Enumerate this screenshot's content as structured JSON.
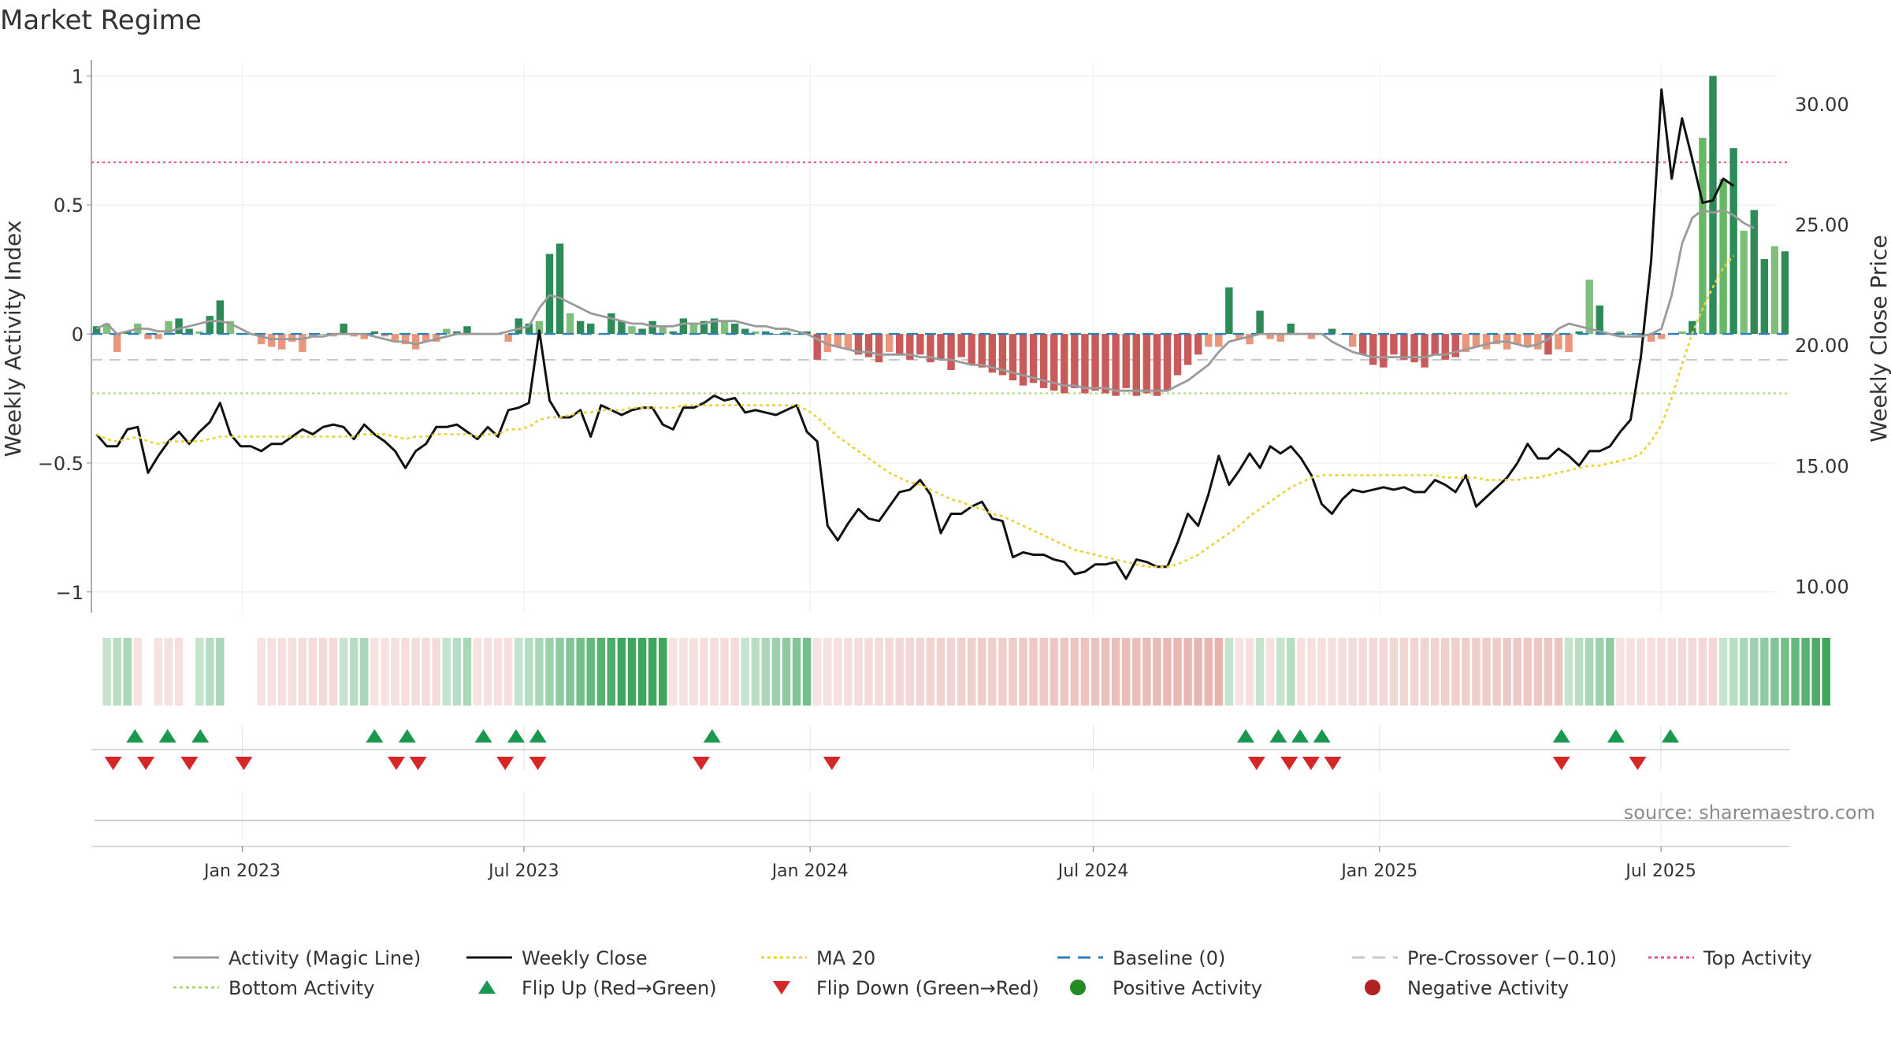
{
  "chart_data": {
    "type": "line",
    "title": "Market Regime",
    "source": "source: sharemaestro.com",
    "x_ticks": [
      "Jan 2023",
      "Jul 2023",
      "Jan 2024",
      "Jul 2024",
      "Jan 2025",
      "Jul 2025"
    ],
    "x_tick_dates": [
      "2023-01-01",
      "2023-07-01",
      "2024-01-01",
      "2024-07-01",
      "2025-01-01",
      "2025-07-01"
    ],
    "x_range": [
      "2022-09-26",
      "2025-09-22"
    ],
    "left_axis": {
      "label": "Weekly Activity Index",
      "ylim": [
        -1.08,
        1.05
      ],
      "ticks": [
        -1,
        -0.5,
        0,
        0.5,
        1
      ],
      "tick_labels": [
        "−1",
        "−0.5",
        "0",
        "0.5",
        "1"
      ]
    },
    "right_axis": {
      "label": "Weekly Close Price",
      "ylim": [
        8.9,
        31.7
      ],
      "ticks": [
        10,
        15,
        20,
        25,
        30
      ],
      "tick_labels": [
        "10.00",
        "15.00",
        "20.00",
        "25.00",
        "30.00"
      ]
    },
    "reference_lines": {
      "top_activity": 0.665,
      "bottom_activity": -0.23,
      "pre_crossover": -0.1,
      "baseline": 0
    },
    "series": [
      {
        "name": "Weekly Close",
        "axis": "right",
        "color": "#111111",
        "values": [
          16.3,
          15.8,
          15.8,
          16.5,
          16.6,
          14.7,
          15.4,
          16.0,
          16.4,
          15.9,
          16.4,
          16.8,
          17.6,
          16.3,
          15.8,
          15.8,
          15.6,
          15.9,
          15.9,
          16.2,
          16.5,
          16.3,
          16.6,
          16.7,
          16.6,
          16.1,
          16.7,
          16.3,
          16.0,
          15.6,
          14.9,
          15.6,
          15.9,
          16.6,
          16.6,
          16.7,
          16.4,
          16.1,
          16.6,
          16.2,
          17.3,
          17.4,
          17.6,
          20.6,
          17.7,
          17.0,
          17.0,
          17.3,
          16.2,
          17.5,
          17.3,
          17.1,
          17.3,
          17.4,
          17.4,
          16.7,
          16.5,
          17.4,
          17.4,
          17.6,
          17.9,
          17.7,
          17.8,
          17.2,
          17.3,
          17.2,
          17.1,
          17.3,
          17.5,
          16.4,
          16.0,
          12.5,
          11.9,
          12.6,
          13.2,
          12.8,
          12.7,
          13.3,
          13.9,
          14.0,
          14.4,
          13.8,
          12.2,
          13.0,
          13.0,
          13.3,
          13.5,
          12.8,
          12.7,
          11.2,
          11.4,
          11.3,
          11.3,
          11.1,
          11.0,
          10.5,
          10.6,
          10.9,
          10.9,
          11.0,
          10.3,
          11.1,
          11.0,
          10.8,
          10.8,
          11.8,
          13.0,
          12.5,
          13.8,
          15.4,
          14.2,
          14.8,
          15.5,
          14.9,
          15.8,
          15.5,
          15.8,
          15.3,
          14.6,
          13.4,
          13.0,
          13.6,
          14.0,
          13.9,
          14.0,
          14.1,
          14.0,
          14.1,
          13.9,
          13.9,
          14.4,
          14.2,
          13.9,
          14.6,
          13.3,
          13.7,
          14.1,
          14.5,
          15.1,
          15.9,
          15.3,
          15.3,
          15.7,
          15.4,
          15.0,
          15.6,
          15.6,
          15.8,
          16.4,
          16.9,
          19.5,
          23.5,
          30.6,
          26.9,
          29.4,
          27.7,
          25.9,
          26.0,
          26.9,
          26.6
        ]
      },
      {
        "name": "MA 20",
        "axis": "right",
        "color": "#e9d33a",
        "values": [
          16.3,
          16.1,
          16.0,
          16.1,
          16.2,
          16.0,
          15.9,
          16.0,
          16.0,
          16.0,
          16.0,
          16.1,
          16.2,
          16.2,
          16.2,
          16.2,
          16.2,
          16.2,
          16.2,
          16.2,
          16.2,
          16.2,
          16.2,
          16.2,
          16.2,
          16.2,
          16.3,
          16.3,
          16.3,
          16.2,
          16.1,
          16.2,
          16.2,
          16.3,
          16.3,
          16.3,
          16.3,
          16.2,
          16.3,
          16.3,
          16.5,
          16.5,
          16.6,
          16.9,
          17.0,
          17.0,
          17.1,
          17.2,
          17.2,
          17.3,
          17.3,
          17.3,
          17.4,
          17.4,
          17.4,
          17.4,
          17.4,
          17.5,
          17.5,
          17.5,
          17.5,
          17.5,
          17.5,
          17.5,
          17.5,
          17.5,
          17.5,
          17.5,
          17.5,
          17.3,
          17.0,
          16.6,
          16.2,
          15.9,
          15.6,
          15.3,
          15.0,
          14.7,
          14.5,
          14.3,
          14.2,
          14.0,
          13.8,
          13.6,
          13.5,
          13.3,
          13.2,
          13.0,
          12.9,
          12.7,
          12.5,
          12.3,
          12.1,
          11.9,
          11.7,
          11.5,
          11.4,
          11.3,
          11.2,
          11.1,
          11.0,
          10.9,
          10.8,
          10.8,
          10.8,
          10.9,
          11.1,
          11.3,
          11.6,
          11.9,
          12.2,
          12.5,
          12.9,
          13.2,
          13.5,
          13.8,
          14.1,
          14.3,
          14.5,
          14.6,
          14.6,
          14.6,
          14.6,
          14.6,
          14.6,
          14.6,
          14.6,
          14.6,
          14.6,
          14.6,
          14.6,
          14.5,
          14.5,
          14.5,
          14.5,
          14.4,
          14.4,
          14.4,
          14.4,
          14.5,
          14.5,
          14.6,
          14.7,
          14.8,
          14.9,
          15.0,
          15.0,
          15.1,
          15.2,
          15.3,
          15.5,
          16.0,
          16.7,
          17.8,
          19.2,
          20.5,
          21.5,
          22.4,
          23.2,
          23.7
        ]
      },
      {
        "name": "Activity (Magic Line)",
        "axis": "left",
        "color": "#9a9a9a",
        "values": [
          0.02,
          0.04,
          0.0,
          0.01,
          0.02,
          0.02,
          0.01,
          0.01,
          0.02,
          0.03,
          0.04,
          0.05,
          0.05,
          0.04,
          0.02,
          0.0,
          -0.01,
          -0.02,
          -0.02,
          -0.02,
          -0.02,
          -0.01,
          -0.01,
          0.0,
          0.0,
          0.0,
          0.0,
          -0.01,
          -0.02,
          -0.03,
          -0.03,
          -0.04,
          -0.03,
          -0.02,
          -0.01,
          0.0,
          0.0,
          0.0,
          0.0,
          0.0,
          0.01,
          0.02,
          0.03,
          0.1,
          0.15,
          0.14,
          0.12,
          0.1,
          0.08,
          0.07,
          0.06,
          0.05,
          0.04,
          0.04,
          0.03,
          0.03,
          0.03,
          0.04,
          0.04,
          0.04,
          0.05,
          0.05,
          0.05,
          0.04,
          0.03,
          0.03,
          0.02,
          0.02,
          0.01,
          0.0,
          -0.02,
          -0.04,
          -0.05,
          -0.06,
          -0.07,
          -0.07,
          -0.08,
          -0.08,
          -0.08,
          -0.08,
          -0.09,
          -0.09,
          -0.1,
          -0.1,
          -0.11,
          -0.12,
          -0.12,
          -0.13,
          -0.14,
          -0.15,
          -0.16,
          -0.17,
          -0.18,
          -0.19,
          -0.2,
          -0.2,
          -0.21,
          -0.21,
          -0.21,
          -0.22,
          -0.22,
          -0.22,
          -0.22,
          -0.22,
          -0.22,
          -0.2,
          -0.18,
          -0.15,
          -0.12,
          -0.07,
          -0.03,
          -0.02,
          -0.01,
          0.0,
          0.0,
          0.0,
          0.0,
          0.0,
          0.0,
          0.0,
          -0.03,
          -0.05,
          -0.07,
          -0.08,
          -0.09,
          -0.09,
          -0.09,
          -0.09,
          -0.09,
          -0.09,
          -0.08,
          -0.08,
          -0.07,
          -0.06,
          -0.05,
          -0.04,
          -0.03,
          -0.03,
          -0.04,
          -0.05,
          -0.04,
          -0.02,
          0.02,
          0.04,
          0.03,
          0.02,
          0.01,
          0.0,
          -0.01,
          -0.01,
          -0.01,
          0.0,
          0.02,
          0.15,
          0.35,
          0.45,
          0.48,
          0.47,
          0.48,
          0.46,
          0.43,
          0.41
        ]
      }
    ],
    "bars": {
      "name": "Weekly Activity Index",
      "axis": "left",
      "values": [
        0.03,
        0.04,
        -0.07,
        0.01,
        0.04,
        -0.02,
        -0.02,
        0.05,
        0.06,
        0.02,
        0.01,
        0.07,
        0.13,
        0.05,
        0.0,
        0.0,
        -0.04,
        -0.05,
        -0.06,
        -0.03,
        -0.07,
        -0.01,
        0.0,
        -0.01,
        0.04,
        -0.01,
        -0.02,
        0.01,
        -0.01,
        -0.03,
        -0.04,
        -0.06,
        -0.03,
        -0.03,
        0.02,
        0.01,
        0.03,
        0.0,
        0.0,
        0.0,
        -0.03,
        0.06,
        0.04,
        0.05,
        0.31,
        0.35,
        0.08,
        0.05,
        0.04,
        0.0,
        0.08,
        0.05,
        0.03,
        0.02,
        0.05,
        0.03,
        0.01,
        0.06,
        0.04,
        0.05,
        0.06,
        0.05,
        0.04,
        0.02,
        0.01,
        0.01,
        0.0,
        0.01,
        0.0,
        0.01,
        -0.1,
        -0.07,
        -0.05,
        -0.06,
        -0.08,
        -0.09,
        -0.11,
        -0.07,
        -0.08,
        -0.1,
        -0.08,
        -0.11,
        -0.1,
        -0.14,
        -0.09,
        -0.12,
        -0.13,
        -0.15,
        -0.16,
        -0.18,
        -0.2,
        -0.19,
        -0.21,
        -0.22,
        -0.23,
        -0.21,
        -0.23,
        -0.22,
        -0.23,
        -0.24,
        -0.21,
        -0.24,
        -0.23,
        -0.24,
        -0.22,
        -0.16,
        -0.12,
        -0.08,
        -0.05,
        -0.05,
        0.18,
        -0.02,
        -0.04,
        0.09,
        -0.02,
        -0.03,
        0.04,
        0.0,
        -0.02,
        0.0,
        0.02,
        0.0,
        -0.05,
        -0.08,
        -0.12,
        -0.13,
        -0.08,
        -0.1,
        -0.11,
        -0.13,
        -0.08,
        -0.1,
        -0.09,
        -0.07,
        -0.05,
        -0.06,
        -0.04,
        -0.06,
        -0.04,
        -0.05,
        -0.06,
        -0.08,
        -0.06,
        -0.07,
        0.01,
        0.21,
        0.11,
        0.0,
        0.01,
        0.0,
        -0.01,
        -0.03,
        -0.02,
        0.0,
        0.01,
        0.05,
        0.76,
        1.0,
        0.6,
        0.72,
        0.4,
        0.48,
        0.29,
        0.34,
        0.32
      ]
    },
    "regime_strip": {
      "levels": [
        0,
        1,
        2,
        3,
        -1,
        0,
        -1,
        -2,
        -3,
        0,
        1,
        2,
        3,
        0,
        0,
        0,
        -1,
        -2,
        -3,
        -4,
        -5,
        -6,
        -7,
        -8,
        1,
        2,
        3,
        -1,
        -2,
        -3,
        -4,
        -5,
        -6,
        -7,
        1,
        2,
        3,
        -1,
        -2,
        -3,
        -4,
        1,
        2,
        3,
        4,
        5,
        6,
        7,
        8,
        9,
        10,
        11,
        12,
        13,
        14,
        15,
        -1,
        -2,
        -3,
        -4,
        -5,
        -6,
        -7,
        1,
        2,
        3,
        4,
        5,
        6,
        7,
        -1,
        -2,
        -3,
        -4,
        -5,
        -6,
        -7,
        -8,
        -9,
        -10,
        -11,
        -12,
        -13,
        -14,
        -15,
        -16,
        -17,
        -18,
        -19,
        -20,
        -21,
        -22,
        -23,
        -24,
        -25,
        -26,
        -27,
        -28,
        -29,
        -30,
        -31,
        -32,
        -33,
        -34,
        -35,
        -36,
        -37,
        -38,
        -39,
        -40,
        1,
        -1,
        -2,
        1,
        -1,
        1,
        2,
        -1,
        -2,
        -3,
        -4,
        -5,
        -6,
        -7,
        -8,
        -9,
        -10,
        -11,
        -12,
        -13,
        -14,
        -15,
        -16,
        -17,
        -18,
        -19,
        -20,
        -21,
        -22,
        -23,
        -24,
        -25,
        -26,
        1,
        2,
        3,
        4,
        5,
        -1,
        -2,
        -3,
        -4,
        -5,
        -6,
        -7,
        -8,
        -9,
        -10,
        1,
        2,
        3,
        4,
        5,
        6,
        7,
        8,
        9,
        10,
        11
      ]
    },
    "flip_up": [
      "2022-10-24",
      "2022-11-14",
      "2022-12-05",
      "2023-03-27",
      "2023-04-17",
      "2023-06-05",
      "2023-06-26",
      "2023-07-10",
      "2023-10-30",
      "2024-10-07",
      "2024-10-28",
      "2024-11-11",
      "2024-11-25",
      "2025-04-28",
      "2025-06-02",
      "2025-07-07"
    ],
    "flip_down": [
      "2022-10-10",
      "2022-10-31",
      "2022-11-28",
      "2023-01-02",
      "2023-04-10",
      "2023-04-24",
      "2023-06-19",
      "2023-07-10",
      "2023-10-23",
      "2024-01-15",
      "2024-10-14",
      "2024-11-04",
      "2024-11-18",
      "2024-12-02",
      "2025-04-28",
      "2025-06-16"
    ],
    "legend": [
      {
        "label": "Activity (Magic Line)",
        "kind": "line",
        "color": "#9a9a9a",
        "dash": "solid"
      },
      {
        "label": "Weekly Close",
        "kind": "line",
        "color": "#111111",
        "dash": "solid"
      },
      {
        "label": "MA 20",
        "kind": "line",
        "color": "#e9d33a",
        "dash": "dotted"
      },
      {
        "label": "Baseline (0)",
        "kind": "line",
        "color": "#2c7fb8",
        "dash": "dashed"
      },
      {
        "label": "Pre-Crossover (−0.10)",
        "kind": "line",
        "color": "#c8c8c8",
        "dash": "dashed"
      },
      {
        "label": "Top Activity",
        "kind": "line",
        "color": "#e8537a",
        "dash": "dotted"
      },
      {
        "label": "Bottom Activity",
        "kind": "line",
        "color": "#a6d96a",
        "dash": "dotted"
      },
      {
        "label": "Flip Up (Red→Green)",
        "kind": "triangle-up",
        "color": "#1a9850"
      },
      {
        "label": "Flip Down (Green→Red)",
        "kind": "triangle-down",
        "color": "#d62728"
      },
      {
        "label": "Positive Activity",
        "kind": "dot",
        "color": "#228b22"
      },
      {
        "label": "Negative Activity",
        "kind": "dot",
        "color": "#b22222"
      }
    ]
  }
}
